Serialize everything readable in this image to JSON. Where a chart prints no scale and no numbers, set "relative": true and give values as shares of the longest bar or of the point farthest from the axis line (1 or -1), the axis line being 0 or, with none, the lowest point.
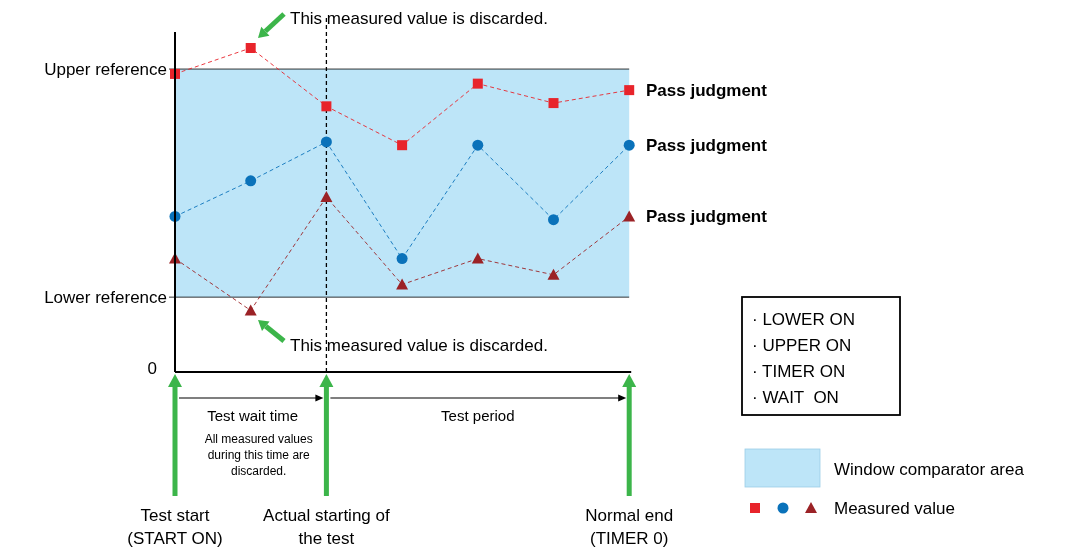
{
  "chart_data": {
    "type": "line",
    "relative": true,
    "categories": [
      null,
      null,
      null,
      null,
      null,
      null,
      null
    ],
    "line_style": "dashed",
    "series": [
      {
        "color": "#e8242b",
        "marker": "square",
        "values": [
          0.92,
          1.0,
          0.82,
          0.7,
          0.89,
          0.83,
          0.87
        ]
      },
      {
        "color": "#0a72ba",
        "marker": "circle",
        "values": [
          0.48,
          0.59,
          0.71,
          0.35,
          0.7,
          0.47,
          0.7
        ]
      },
      {
        "color": "#9b2226",
        "marker": "triangle",
        "values": [
          0.35,
          0.19,
          0.54,
          0.27,
          0.35,
          0.3,
          0.48
        ]
      }
    ],
    "bands": [
      {
        "axis": "y",
        "from": 0.231,
        "to": 0.935,
        "color": "#bde5f8"
      }
    ],
    "ref_lines": [
      {
        "axis": "y",
        "value": 0.935,
        "label": "Upper reference"
      },
      {
        "axis": "y",
        "value": 0.231,
        "label": "Lower reference"
      }
    ],
    "annotations": [
      "This measured value is discarded.",
      "This measured value is discarded.",
      "Pass judgment",
      "Pass judgment",
      "Pass judgment",
      "Test wait time",
      "All measured values during this time are discarded.",
      "Test period",
      "Test start (START ON)",
      "Actual starting of the test",
      "Normal end (TIMER 0)",
      "Measured value",
      "0",
      "· LOWER ON",
      "· UPPER ON",
      "· TIMER ON",
      "· WAIT  ON",
      "Window comparator area"
    ]
  }
}
